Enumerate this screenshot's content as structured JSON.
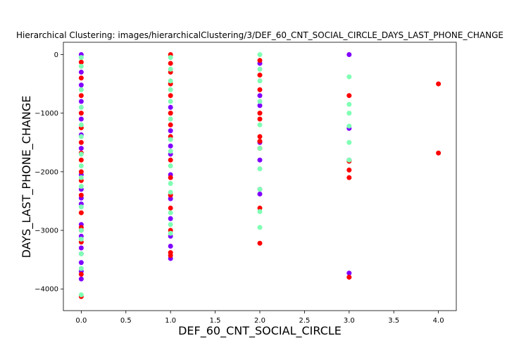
{
  "chart_data": {
    "type": "scatter",
    "title": "Hierarchical Clustering: images/hierarchicalClustering/3/DEF_60_CNT_SOCIAL_CIRCLE_DAYS_LAST_PHONE_CHANGE",
    "xlabel": "DEF_60_CNT_SOCIAL_CIRCLE",
    "ylabel": "DAYS_LAST_PHONE_CHANGE",
    "xlim": [
      -0.2,
      4.2
    ],
    "ylim": [
      -4370,
      210
    ],
    "xticks": [
      {
        "value": 0,
        "label": "0.0"
      },
      {
        "value": 0.5,
        "label": "0.5"
      },
      {
        "value": 1,
        "label": "1.0"
      },
      {
        "value": 1.5,
        "label": "1.5"
      },
      {
        "value": 2,
        "label": "2.0"
      },
      {
        "value": 2.5,
        "label": "2.5"
      },
      {
        "value": 3,
        "label": "3.0"
      },
      {
        "value": 3.5,
        "label": "3.5"
      },
      {
        "value": 4,
        "label": "4.0"
      }
    ],
    "yticks": [
      0,
      {
        "value": -1000,
        "label": "−1000"
      },
      {
        "value": -2000,
        "label": "−2000"
      },
      {
        "value": -3000,
        "label": "−3000"
      },
      {
        "value": -4000,
        "label": "−4000"
      }
    ],
    "grid": false,
    "series": [
      {
        "color": "#8000ff",
        "x": [
          0,
          0,
          0,
          0,
          0,
          0,
          0,
          0,
          0,
          0,
          0,
          0,
          0,
          0,
          0,
          0,
          0,
          0,
          1,
          1,
          1,
          1,
          1,
          1,
          1,
          1,
          1,
          1,
          2,
          2,
          2,
          2,
          2,
          2,
          2,
          3,
          3,
          3,
          3
        ],
        "values": [
          0,
          -300,
          -520,
          -800,
          -1100,
          -1370,
          -1600,
          -2050,
          -2300,
          -2450,
          -2550,
          -2900,
          -3100,
          -3300,
          -3400,
          -3550,
          -3700,
          -3830,
          -1300,
          -1560,
          -1700,
          -2050,
          -2460,
          -2800,
          -3100,
          -3270,
          -3480,
          -900,
          -150,
          -700,
          -870,
          -1800,
          -2300,
          -2380,
          -1500,
          0,
          -1260,
          -1800,
          -3730
        ]
      },
      {
        "color": "#ff0000",
        "x": [
          0,
          0,
          0,
          0,
          0,
          0,
          0,
          0,
          0,
          0,
          0,
          0,
          0,
          0,
          0,
          0,
          0,
          1,
          1,
          1,
          1,
          1,
          1,
          1,
          1,
          1,
          1,
          1,
          1,
          1,
          1,
          1,
          2,
          2,
          2,
          2,
          2,
          2,
          2,
          2,
          2,
          2,
          3,
          3,
          3,
          3,
          3,
          4,
          4
        ],
        "values": [
          -130,
          -400,
          -700,
          -1000,
          -1250,
          -1500,
          -1680,
          -1800,
          -2000,
          -2150,
          -2400,
          -2700,
          -2950,
          -3000,
          -3200,
          -3750,
          -4130,
          0,
          -150,
          -300,
          -700,
          -1000,
          -1200,
          -1400,
          -1800,
          -2100,
          -2400,
          -2620,
          -3000,
          -3380,
          -3430,
          -500,
          -100,
          -350,
          -600,
          -1000,
          -1100,
          -1400,
          -1480,
          -1600,
          -2620,
          -3220,
          -700,
          -1820,
          -1970,
          -2100,
          -3800,
          -500,
          -1680
        ]
      },
      {
        "color": "#80ffb4",
        "x": [
          0,
          0,
          0,
          0,
          0,
          0,
          0,
          0,
          0,
          0,
          0,
          0,
          0,
          0,
          0,
          0,
          1,
          1,
          1,
          1,
          1,
          1,
          1,
          1,
          1,
          1,
          1,
          1,
          1,
          1,
          2,
          2,
          2,
          2,
          2,
          2,
          2,
          2,
          2,
          2,
          3,
          3,
          3,
          3,
          3,
          3
        ],
        "values": [
          -50,
          -200,
          -600,
          -900,
          -1200,
          -1400,
          -1700,
          -1900,
          -2100,
          -2250,
          -2600,
          -3000,
          -3150,
          -3400,
          -3650,
          -4100,
          -50,
          -250,
          -450,
          -800,
          -1100,
          -1450,
          -1650,
          -1900,
          -2200,
          -2350,
          -2700,
          -2900,
          -3050,
          -600,
          0,
          -250,
          -450,
          -800,
          -1200,
          -1600,
          -1950,
          -2300,
          -2680,
          -2950,
          -380,
          -850,
          -1000,
          -1220,
          -1500,
          -1800
        ]
      }
    ]
  }
}
